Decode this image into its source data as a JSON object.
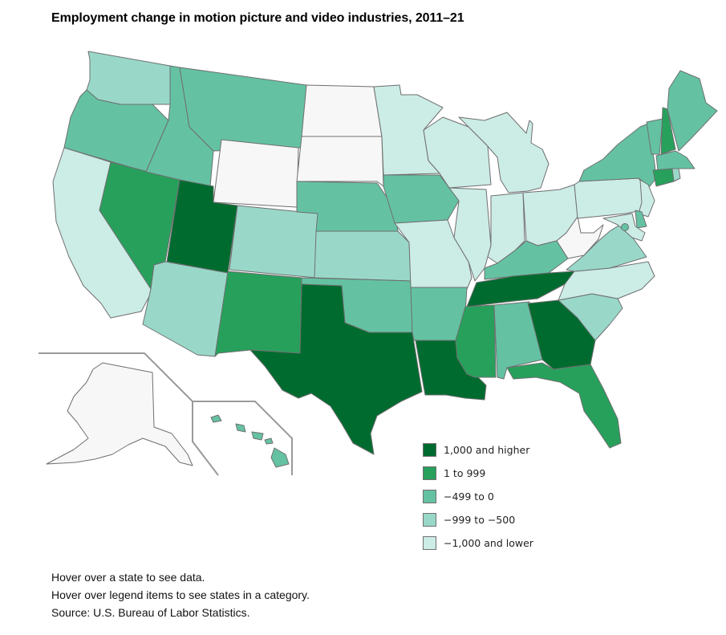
{
  "title": "Employment change in motion picture and video industries, 2011–21",
  "legend": [
    {
      "label": "1,000 and higher",
      "color": "#006b2f"
    },
    {
      "label": "1 to 999",
      "color": "#27a05c"
    },
    {
      "label": "−499 to 0",
      "color": "#64c2a3"
    },
    {
      "label": "−999 to −500",
      "color": "#99d8c9"
    },
    {
      "label": "−1,000 and lower",
      "color": "#ccece6"
    }
  ],
  "no_data_color": "#f7f7f7",
  "notes": [
    "Hover over a state to see data.",
    "Hover over legend items to see states in a category.",
    "Source: U.S. Bureau of Labor Statistics."
  ],
  "states": {
    "WA": 3,
    "OR": 2,
    "CA": 4,
    "NV": 1,
    "ID": 2,
    "MT": 2,
    "WY": null,
    "UT": 0,
    "AZ": 3,
    "CO": 3,
    "NM": 1,
    "ND": null,
    "SD": null,
    "NE": 2,
    "KS": 3,
    "OK": 2,
    "TX": 0,
    "MN": 4,
    "IA": 2,
    "MO": 4,
    "AR": 2,
    "LA": 0,
    "WI": 4,
    "IL": 4,
    "MI": 4,
    "IN": 4,
    "OH": 4,
    "KY": 2,
    "TN": 0,
    "MS": 1,
    "AL": 2,
    "GA": 0,
    "FL": 1,
    "SC": 3,
    "NC": 4,
    "VA": 3,
    "WV": null,
    "PA": 4,
    "NY": 2,
    "VT": 2,
    "NH": 1,
    "ME": 2,
    "MA": 2,
    "RI": 3,
    "CT": 1,
    "NJ": 4,
    "DE": 2,
    "MD": 4,
    "DC": 2,
    "AK": null,
    "HI": 2
  }
}
